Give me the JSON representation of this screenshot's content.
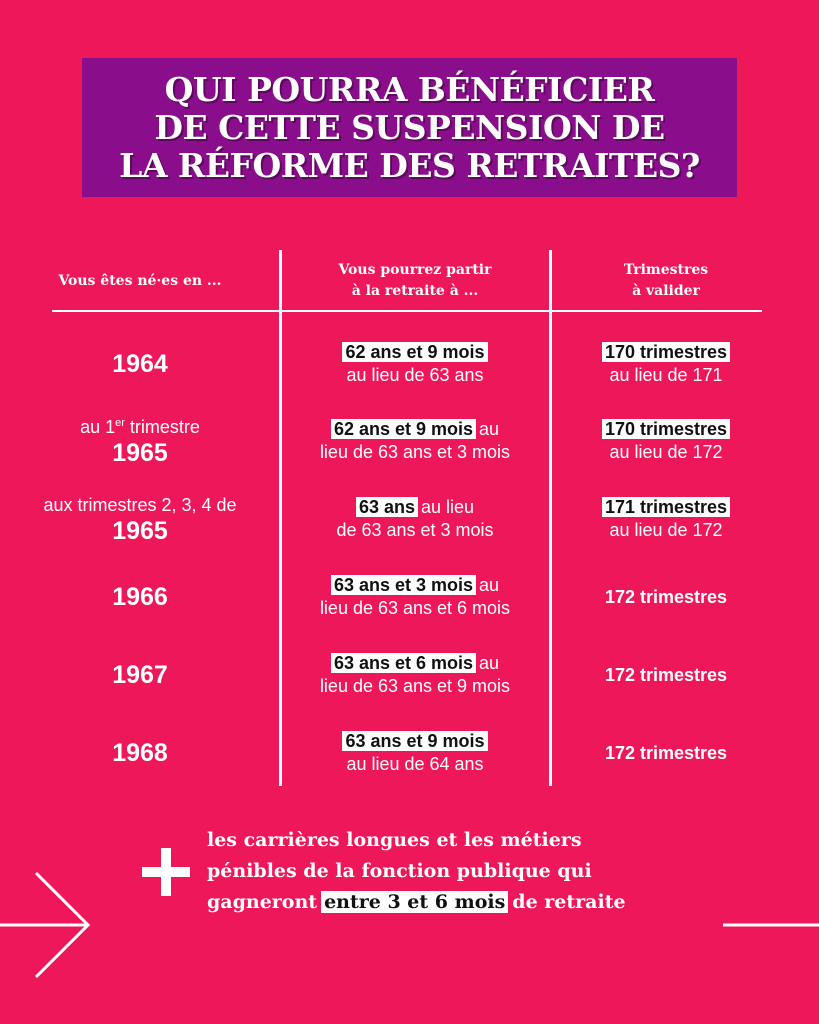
{
  "title": {
    "lines": [
      "QUI POURRA BÉNÉFICIER",
      "DE CETTE SUSPENSION DE",
      "LA RÉFORME DES RETRAITES?"
    ]
  },
  "table": {
    "headers": [
      {
        "lines": [
          "Vous êtes né·es en ..."
        ]
      },
      {
        "lines": [
          "Vous pourrez partir",
          "à la retraite à ..."
        ]
      },
      {
        "lines": [
          "Trimestres",
          "à valider"
        ]
      }
    ],
    "rows": [
      {
        "birth": {
          "year": "1964"
        },
        "age": {
          "highlight": "62 ans et 9 mois",
          "line2": "au lieu de 63 ans"
        },
        "quarters": {
          "highlight": "170 trimestres",
          "line2": "au lieu de 171"
        }
      },
      {
        "birth": {
          "prefix": "au 1",
          "sup": "er",
          "suffix": "trimestre",
          "year": "1965"
        },
        "age": {
          "highlight": "62 ans et 9 mois",
          "after": "au",
          "line2": "lieu de 63 ans et 3 mois"
        },
        "quarters": {
          "highlight": "170 trimestres",
          "line2": "au lieu de 172"
        }
      },
      {
        "birth": {
          "prefix": "aux trimestres 2, 3, 4 de",
          "year": "1965"
        },
        "age": {
          "highlight": "63 ans",
          "after": "au lieu",
          "line2": "de 63 ans et 3 mois"
        },
        "quarters": {
          "highlight": "171 trimestres",
          "line2": "au lieu de 172"
        }
      },
      {
        "birth": {
          "year": "1966"
        },
        "age": {
          "highlight": "63 ans et 3 mois",
          "after": "au",
          "line2": "lieu de 63 ans et 6 mois"
        },
        "quarters": {
          "text": "172 trimestres"
        }
      },
      {
        "birth": {
          "year": "1967"
        },
        "age": {
          "highlight": "63 ans et 6 mois",
          "after": "au",
          "line2": "lieu de 63 ans et 9 mois"
        },
        "quarters": {
          "text": "172 trimestres"
        }
      },
      {
        "birth": {
          "year": "1968"
        },
        "age": {
          "highlight": "63 ans et 9 mois",
          "line2": "au lieu de 64 ans"
        },
        "quarters": {
          "text": "172 trimestres"
        }
      }
    ]
  },
  "footer": {
    "lines": [
      "les carrières longues et les métiers",
      "pénibles de la fonction publique qui"
    ],
    "before": "gagneront",
    "highlight": "entre 3 et 6 mois",
    "after": "de retraite"
  }
}
